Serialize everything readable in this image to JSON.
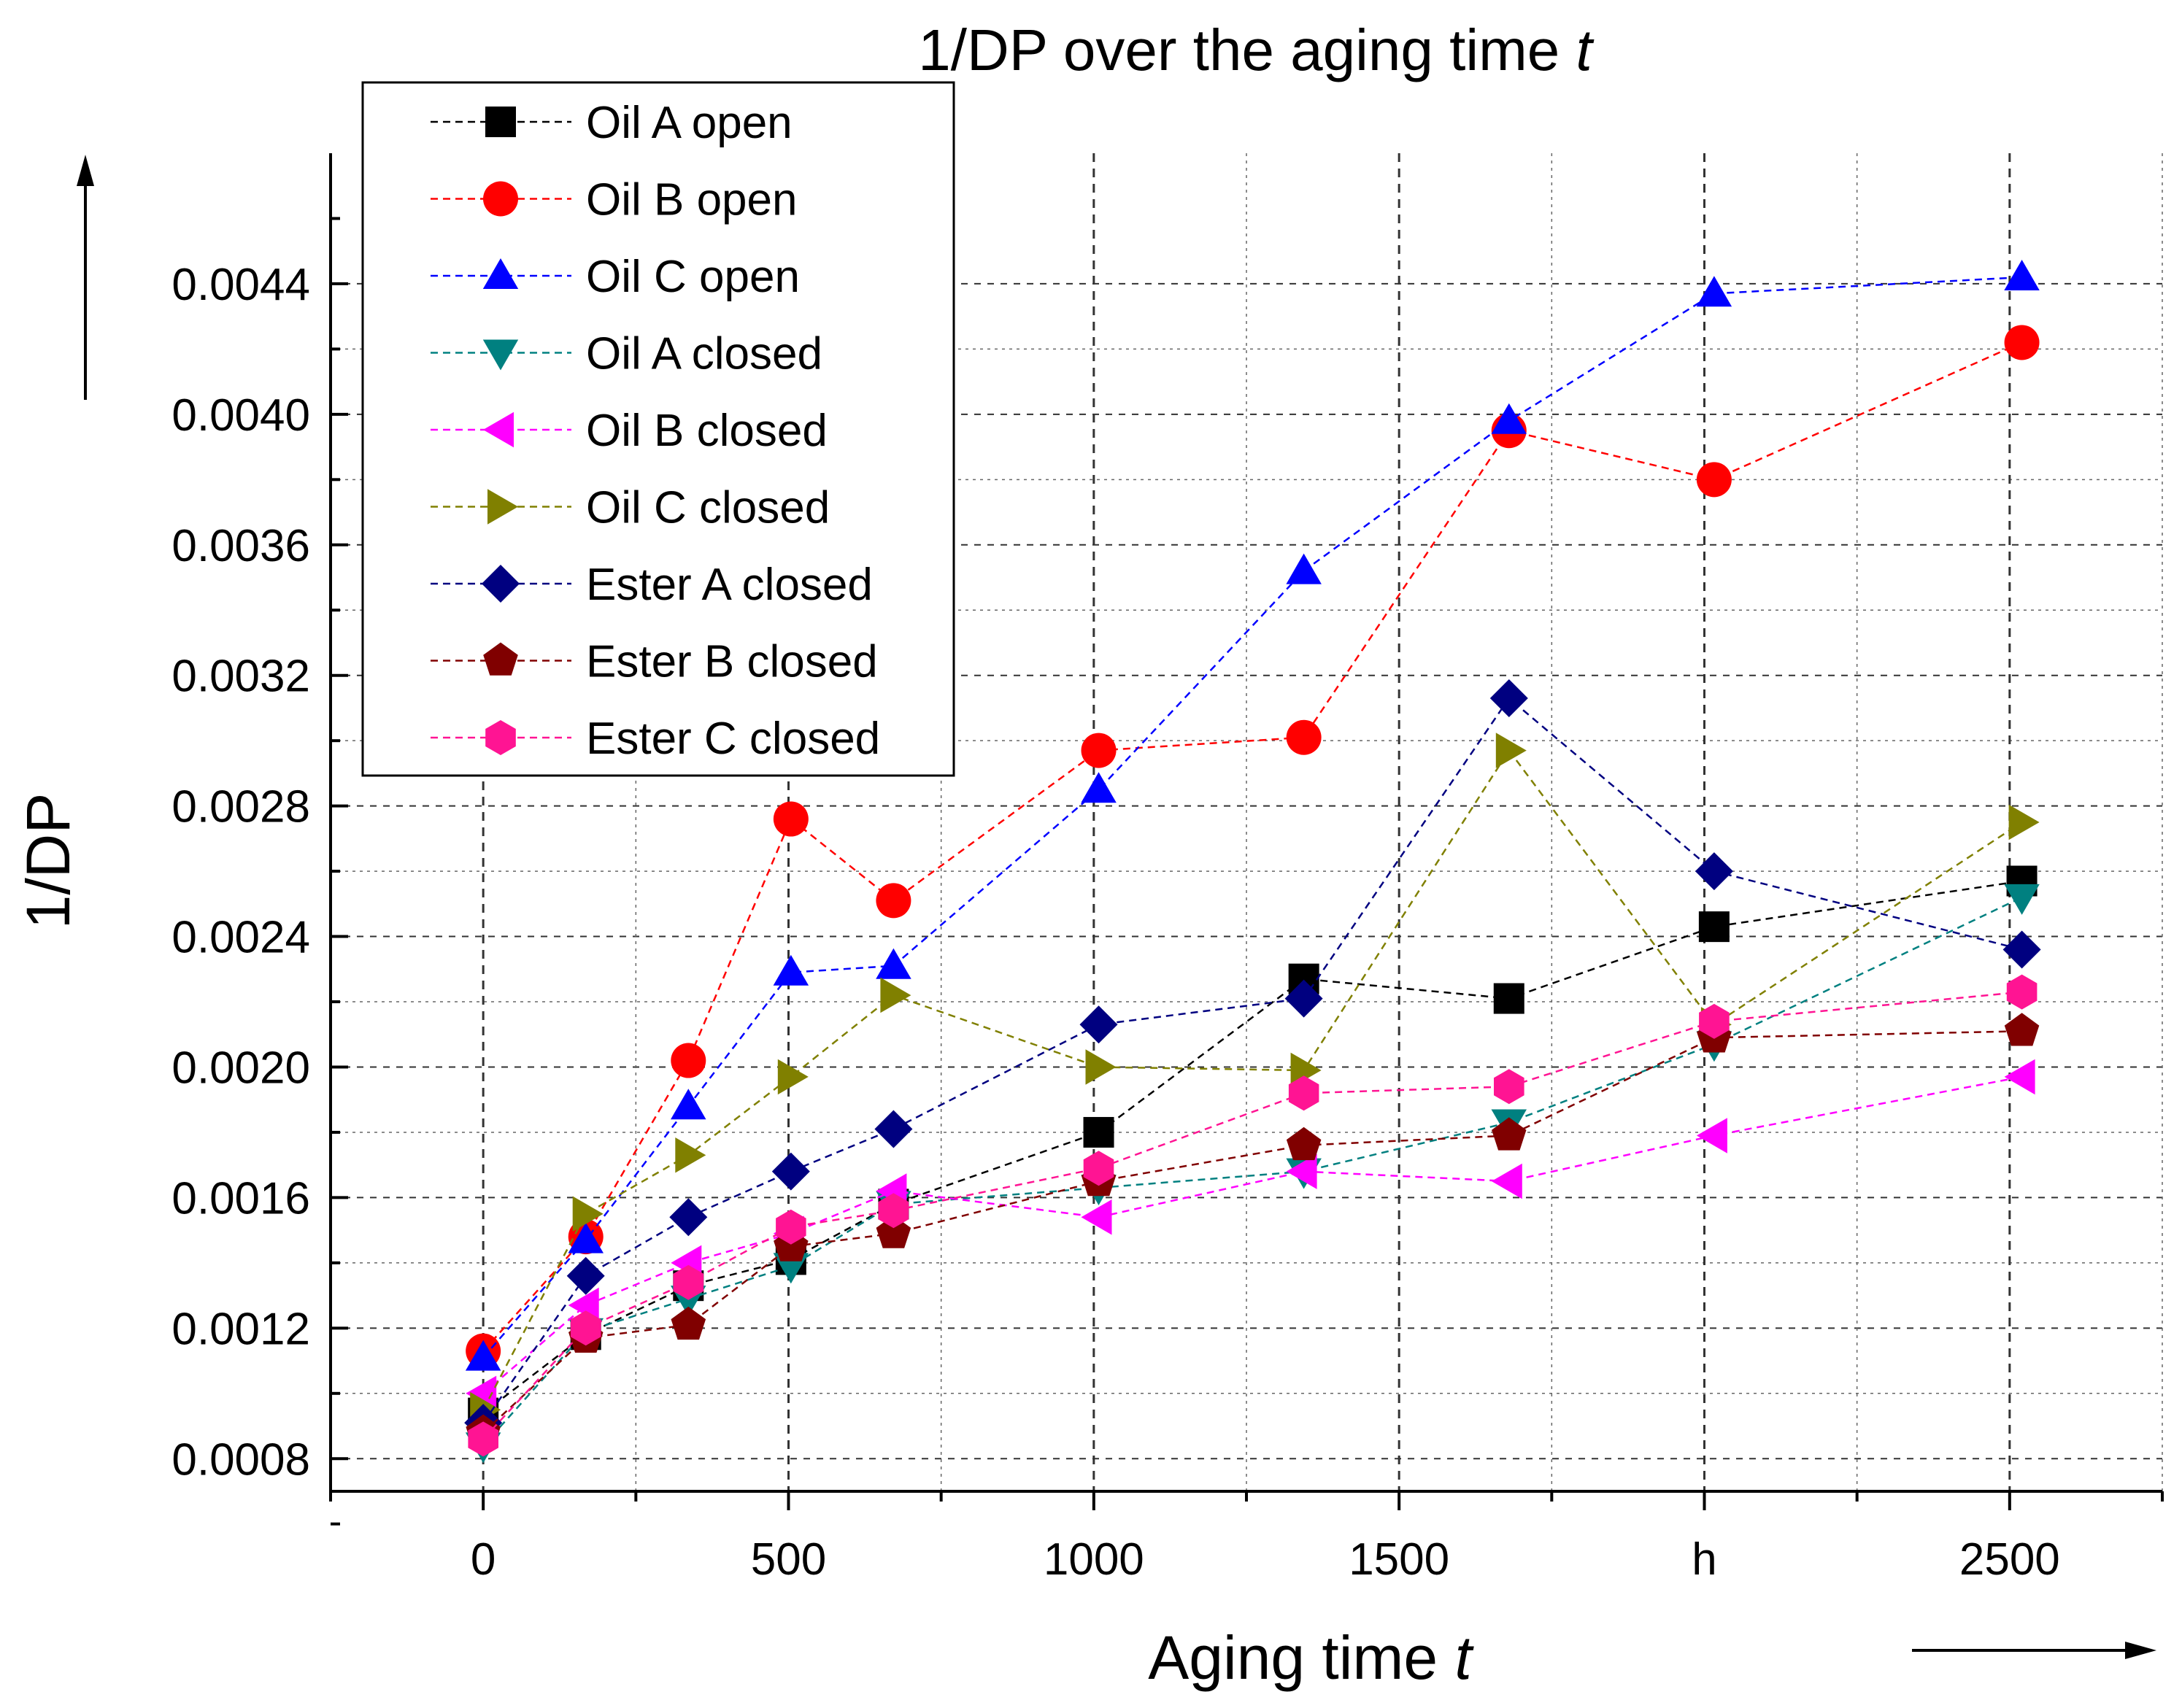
{
  "chart_data": {
    "type": "line",
    "title": "1/DP over the aging time",
    "title_italic": "t",
    "xlabel": "Aging time",
    "xlabel_italic": "t",
    "ylabel": "1/DP",
    "xlim": [
      -250,
      2750
    ],
    "ylim": [
      0.0007,
      0.0048
    ],
    "x_ticks": [
      0,
      500,
      1000,
      1500,
      2000,
      2500
    ],
    "x_tick_labels": [
      "0",
      "500",
      "1000",
      "1500",
      "h",
      "2500"
    ],
    "y_ticks": [
      0.0008,
      0.0012,
      0.0016,
      0.002,
      0.0024,
      0.0028,
      0.0032,
      0.0036,
      0.004,
      0.0044
    ],
    "y_tick_labels": [
      "0.0008",
      "0.0012",
      "0.0016",
      "0.0020",
      "0.0024",
      "0.0028",
      "0.0032",
      "0.0036",
      "0.0040",
      "0.0044"
    ],
    "grid": true,
    "legend_position": "top-left",
    "line_style": "dashed",
    "x": [
      0,
      168,
      336,
      504,
      672,
      1008,
      1344,
      1680,
      2016,
      2520
    ],
    "series": [
      {
        "name": "Oil A open",
        "marker": "square",
        "color": "#000000",
        "values": [
          0.00094,
          0.00118,
          0.00133,
          0.00141,
          0.00158,
          0.0018,
          0.00227,
          0.00221,
          0.00243,
          0.00257
        ]
      },
      {
        "name": "Oil B open",
        "marker": "circle",
        "color": "#ff0000",
        "values": [
          0.00113,
          0.00148,
          0.00202,
          0.00276,
          0.00251,
          0.00297,
          0.00301,
          0.00395,
          0.0038,
          0.00422
        ]
      },
      {
        "name": "Oil C open",
        "marker": "triangle-up",
        "color": "#0000ff",
        "values": [
          0.00111,
          0.00147,
          0.00188,
          0.00229,
          0.00231,
          0.00285,
          0.00352,
          0.00398,
          0.00437,
          0.00442
        ]
      },
      {
        "name": "Oil A closed",
        "marker": "triangle-down",
        "color": "#008080",
        "values": [
          0.00084,
          0.00119,
          0.00129,
          0.00139,
          0.00158,
          0.00163,
          0.00168,
          0.00183,
          0.00207,
          0.00252
        ]
      },
      {
        "name": "Oil B closed",
        "marker": "triangle-left",
        "color": "#ff00ff",
        "values": [
          0.001,
          0.00127,
          0.0014,
          0.00149,
          0.00162,
          0.00154,
          0.00168,
          0.00165,
          0.00179,
          0.00197
        ]
      },
      {
        "name": "Oil C closed",
        "marker": "triangle-right",
        "color": "#808000",
        "values": [
          0.00095,
          0.00155,
          0.00173,
          0.00197,
          0.00222,
          0.002,
          0.00199,
          0.00297,
          0.00213,
          0.00275
        ]
      },
      {
        "name": "Ester A closed",
        "marker": "diamond",
        "color": "#000080",
        "values": [
          0.00091,
          0.00136,
          0.00154,
          0.00168,
          0.00181,
          0.00213,
          0.00221,
          0.00313,
          0.0026,
          0.00236
        ]
      },
      {
        "name": "Ester B closed",
        "marker": "pentagon",
        "color": "#800000",
        "values": [
          0.00088,
          0.00117,
          0.00121,
          0.00145,
          0.00149,
          0.00165,
          0.00176,
          0.00179,
          0.00209,
          0.00211
        ]
      },
      {
        "name": "Ester C closed",
        "marker": "hexagon",
        "color": "#ff1493",
        "values": [
          0.00086,
          0.0012,
          0.00134,
          0.00151,
          0.00156,
          0.00169,
          0.00192,
          0.00194,
          0.00214,
          0.00223
        ]
      }
    ]
  }
}
